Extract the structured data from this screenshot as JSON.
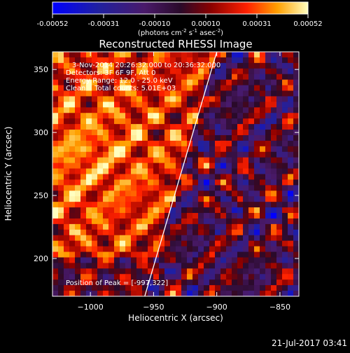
{
  "colorbar": {
    "ticks": [
      "-0.00052",
      "-0.00031",
      "-0.00010",
      "0.00010",
      "0.00031",
      "0.00052"
    ],
    "unit_text": "(photons cm",
    "unit_sup1": "-2",
    "unit_mid1": " s",
    "unit_sup2": "-1",
    "unit_mid2": " asec",
    "unit_sup3": "-2",
    "unit_end": ")"
  },
  "chart_data": {
    "type": "heatmap",
    "title": "Reconstructed RHESSI Image",
    "xlabel": "Heliocentric X (arcsec)",
    "ylabel": "Heliocentric Y (arcsec)",
    "xlim": [
      -1030,
      -835
    ],
    "ylim": [
      170,
      364
    ],
    "x_ticks": [
      -1000,
      -950,
      -900,
      -850
    ],
    "x_tick_labels": [
      "−1000",
      "−950",
      "−900",
      "−850"
    ],
    "y_ticks": [
      200,
      250,
      300,
      350
    ],
    "y_tick_labels": [
      "200",
      "250",
      "300",
      "350"
    ],
    "value_range": [
      -0.00052,
      0.00052
    ],
    "limb_line": {
      "points": [
        [
          -957,
          170
        ],
        [
          -900,
          364
        ]
      ]
    },
    "grid": false,
    "annotations": [
      "3-Nov-2014 20:26:32.000 to 20:36:32.000",
      "Detectors: 3F 6F 9F, Att 0",
      "Energy Range: 12.0 - 25.0 keV",
      "Clean    Total counts: 5.01E+03"
    ],
    "footer_note": "Position of Peak = [-997,322]"
  },
  "timestamp": "21-Jul-2017 03:41"
}
